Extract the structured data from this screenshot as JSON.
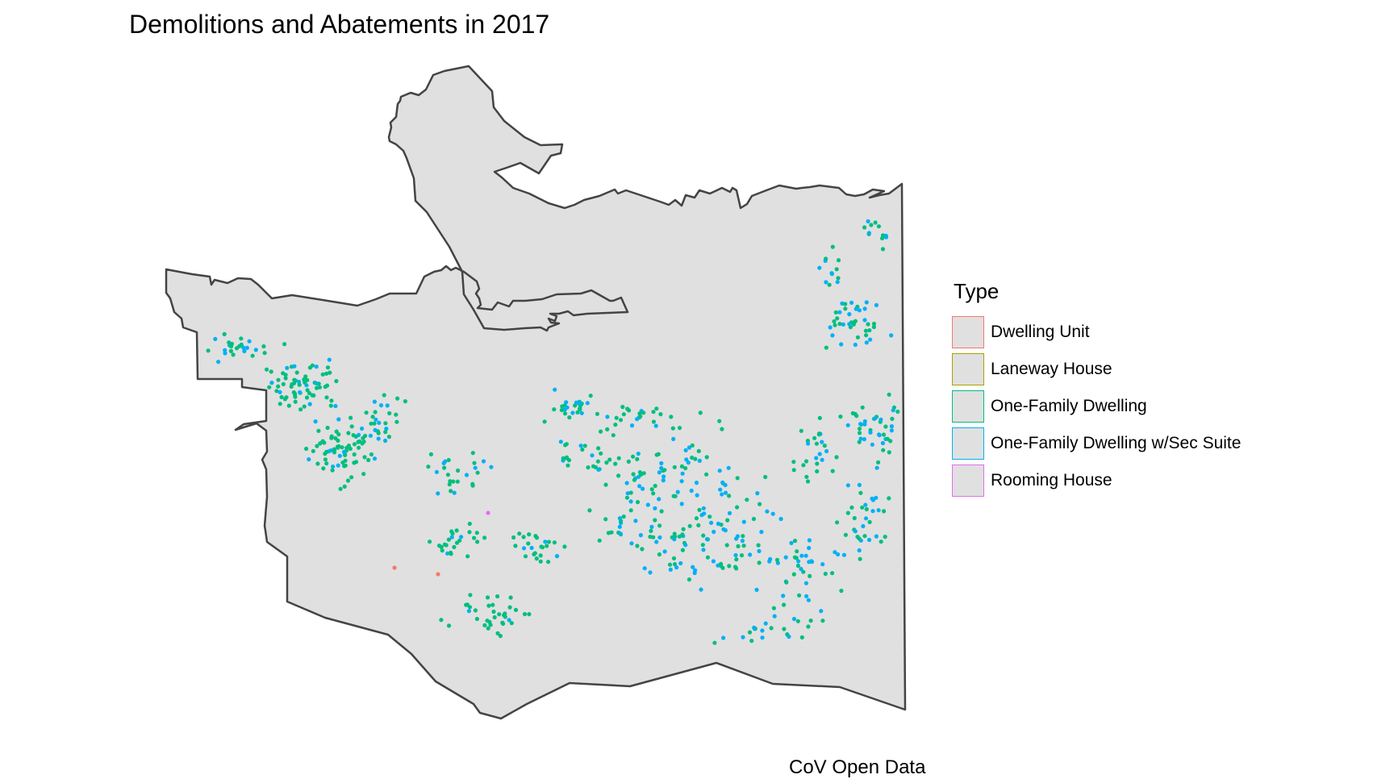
{
  "title": "Demolitions and Abatements in 2017",
  "caption": "CoV Open Data",
  "legend": {
    "title": "Type",
    "items": [
      {
        "label": "Dwelling Unit",
        "color": "#f8766d"
      },
      {
        "label": "Laneway House",
        "color": "#a3a500"
      },
      {
        "label": "One-Family Dwelling",
        "color": "#00bf7d"
      },
      {
        "label": "One-Family Dwelling w/Sec Suite",
        "color": "#00b0f6"
      },
      {
        "label": "Rooming House",
        "color": "#e76bf3"
      }
    ]
  },
  "map": {
    "region": "City of Vancouver",
    "fill": "#e0e0e0",
    "outline": "#444444",
    "point_colors": {
      "dwelling_unit": "#f8766d",
      "one_family": "#00bf7d",
      "sec_suite": "#00b0f6",
      "rooming_house": "#e76bf3"
    }
  }
}
